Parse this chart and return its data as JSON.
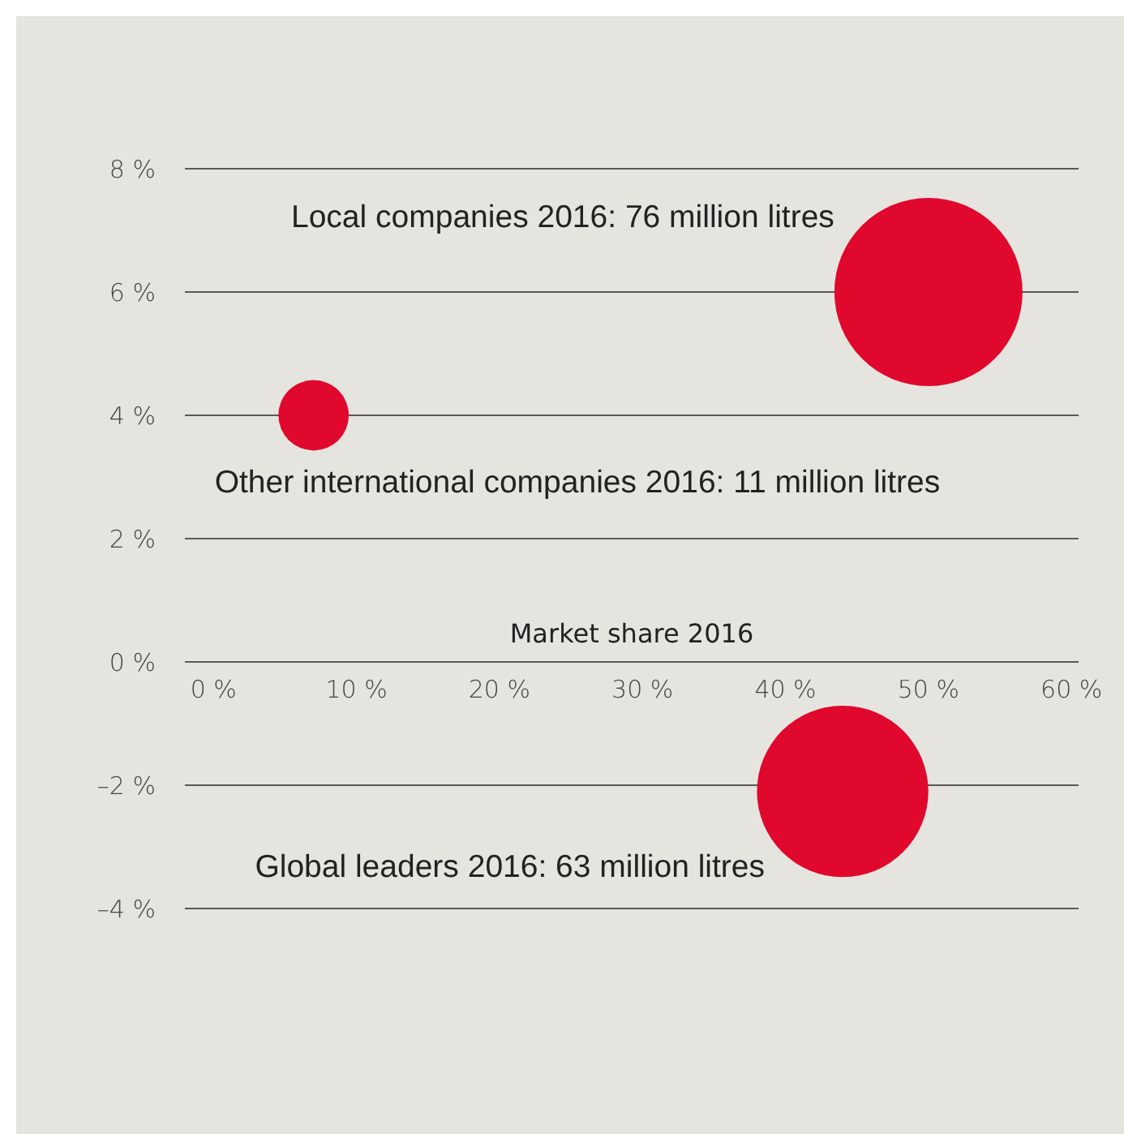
{
  "chart_data": {
    "type": "bubble",
    "xlabel": "Market share 2016",
    "x": [
      50,
      7,
      44
    ],
    "values": [
      6,
      4,
      -2.1
    ],
    "sizes": [
      1,
      0.14,
      0.83
    ],
    "color": "#e0082d",
    "xlim": [
      -2,
      60.5
    ],
    "ylim": [
      -4,
      8
    ],
    "xticks": [
      {
        "value": 0,
        "label": "0 %"
      },
      {
        "value": 10,
        "label": "10 %"
      },
      {
        "value": 20,
        "label": "20 %"
      },
      {
        "value": 30,
        "label": "30 %"
      },
      {
        "value": 40,
        "label": "40 %"
      },
      {
        "value": 50,
        "label": "50 %"
      },
      {
        "value": 60,
        "label": "60 %"
      }
    ],
    "yticks": [
      {
        "value": -4,
        "label": "–4 %"
      },
      {
        "value": -2,
        "label": "–2 %"
      },
      {
        "value": 0,
        "label": "0 %"
      },
      {
        "value": 2,
        "label": "2 %"
      },
      {
        "value": 4,
        "label": "4 %"
      },
      {
        "value": 6,
        "label": "6 %"
      },
      {
        "value": 8,
        "label": "8 %"
      }
    ],
    "grid": "y",
    "annotations": [
      "Local companies 2016: 76 million litres",
      "Other international companies 2016: 11 million litres",
      "Global leaders 2016: 63 million litres"
    ]
  }
}
